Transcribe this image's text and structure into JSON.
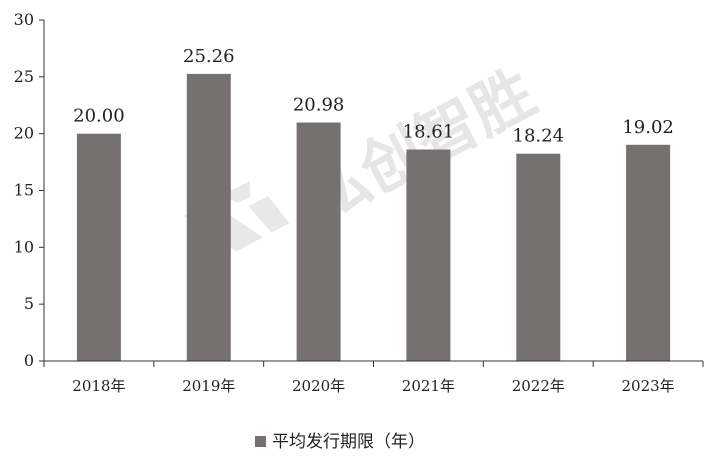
{
  "chart_data": {
    "type": "bar",
    "categories": [
      "2018年",
      "2019年",
      "2020年",
      "2021年",
      "2022年",
      "2023年"
    ],
    "series": [
      {
        "name": "平均发行期限（年）",
        "values": [
          20.0,
          25.26,
          20.98,
          18.61,
          18.24,
          19.02
        ]
      }
    ],
    "data_labels": [
      "20.00",
      "25.26",
      "20.98",
      "18.61",
      "18.24",
      "19.02"
    ],
    "ylim": [
      0,
      30
    ],
    "yticks": [
      0,
      5,
      10,
      15,
      20,
      25,
      30
    ],
    "xlabel": "",
    "ylabel": "",
    "grid": false,
    "legend_position": "bottom",
    "bar_color": "#757170"
  },
  "watermark": {
    "text": "弘创智胜"
  }
}
